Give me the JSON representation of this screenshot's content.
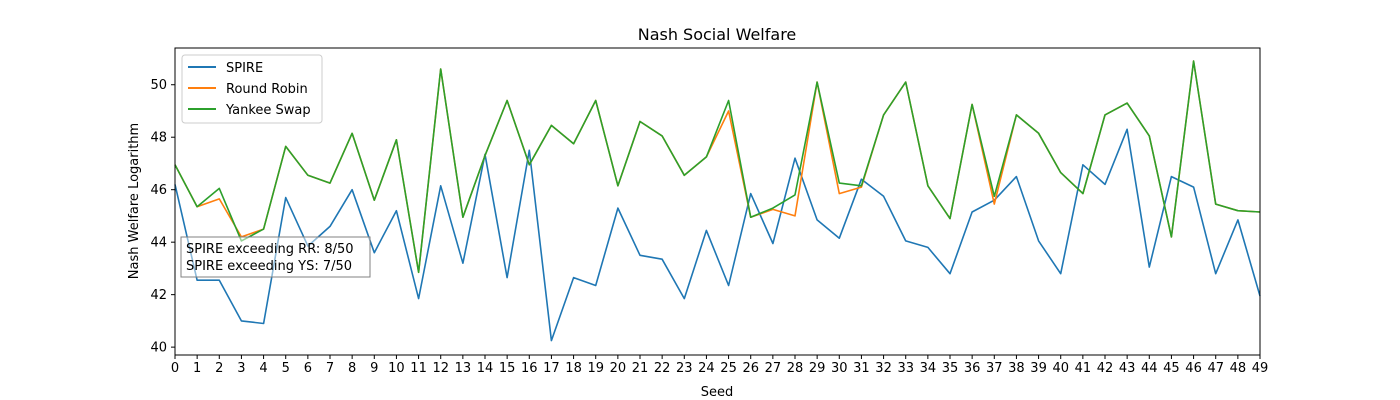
{
  "chart_data": {
    "type": "line",
    "title": "Nash Social Welfare",
    "xlabel": "Seed",
    "ylabel": "Nash Welfare Logarithm",
    "xlim": [
      0,
      49
    ],
    "ylim": [
      39.7,
      51.4
    ],
    "x": [
      0,
      1,
      2,
      3,
      4,
      5,
      6,
      7,
      8,
      9,
      10,
      11,
      12,
      13,
      14,
      15,
      16,
      17,
      18,
      19,
      20,
      21,
      22,
      23,
      24,
      25,
      26,
      27,
      28,
      29,
      30,
      31,
      32,
      33,
      34,
      35,
      36,
      37,
      38,
      39,
      40,
      41,
      42,
      43,
      44,
      45,
      46,
      47,
      48,
      49
    ],
    "xticks": [
      0,
      1,
      2,
      3,
      4,
      5,
      6,
      7,
      8,
      9,
      10,
      11,
      12,
      13,
      14,
      15,
      16,
      17,
      18,
      19,
      20,
      21,
      22,
      23,
      24,
      25,
      26,
      27,
      28,
      29,
      30,
      31,
      32,
      33,
      34,
      35,
      36,
      37,
      38,
      39,
      40,
      41,
      42,
      43,
      44,
      45,
      46,
      47,
      48,
      49
    ],
    "yticks": [
      40,
      42,
      44,
      46,
      48,
      50
    ],
    "grid": false,
    "legend_position": "top-left",
    "series": [
      {
        "name": "SPIRE",
        "color": "#1f77b4",
        "values": [
          46.2,
          42.55,
          42.55,
          41.0,
          40.9,
          45.7,
          43.85,
          44.6,
          46.0,
          43.6,
          45.2,
          41.85,
          46.15,
          43.2,
          47.35,
          42.65,
          47.5,
          40.25,
          42.65,
          42.35,
          45.3,
          43.5,
          43.35,
          41.85,
          44.45,
          42.35,
          45.85,
          43.95,
          47.2,
          44.85,
          44.15,
          46.4,
          45.75,
          44.05,
          43.8,
          42.8,
          45.15,
          45.6,
          46.5,
          44.05,
          42.8,
          46.95,
          46.2,
          48.3,
          43.05,
          46.5,
          46.1,
          42.8,
          44.85,
          41.95
        ]
      },
      {
        "name": "Round Robin",
        "color": "#ff7f0e",
        "values": [
          46.95,
          45.35,
          45.65,
          44.2,
          44.5,
          47.65,
          46.55,
          46.25,
          48.15,
          45.6,
          47.9,
          42.85,
          50.6,
          44.95,
          47.3,
          49.4,
          46.95,
          48.45,
          47.75,
          49.4,
          46.15,
          48.6,
          48.05,
          46.55,
          47.25,
          49.0,
          44.95,
          45.25,
          45.0,
          50.1,
          45.85,
          46.1,
          48.85,
          50.1,
          46.15,
          44.9,
          49.25,
          45.45,
          48.85,
          48.15,
          46.65,
          45.85,
          48.85,
          49.3,
          48.05,
          44.2,
          50.9,
          45.45,
          45.2,
          45.15
        ]
      },
      {
        "name": "Yankee Swap",
        "color": "#2ca02c",
        "values": [
          46.95,
          45.35,
          46.05,
          44.05,
          44.5,
          47.65,
          46.55,
          46.25,
          48.15,
          45.6,
          47.9,
          42.85,
          50.6,
          44.95,
          47.3,
          49.4,
          46.95,
          48.45,
          47.75,
          49.4,
          46.15,
          48.6,
          48.05,
          46.55,
          47.25,
          49.4,
          44.95,
          45.3,
          45.8,
          50.1,
          46.25,
          46.15,
          48.85,
          50.1,
          46.15,
          44.9,
          49.25,
          45.75,
          48.85,
          48.15,
          46.65,
          45.85,
          48.85,
          49.3,
          48.05,
          44.2,
          50.9,
          45.45,
          45.2,
          45.15
        ]
      }
    ],
    "annotations": [
      "SPIRE exceeding RR: 8/50",
      "SPIRE exceeding YS: 7/50"
    ]
  }
}
